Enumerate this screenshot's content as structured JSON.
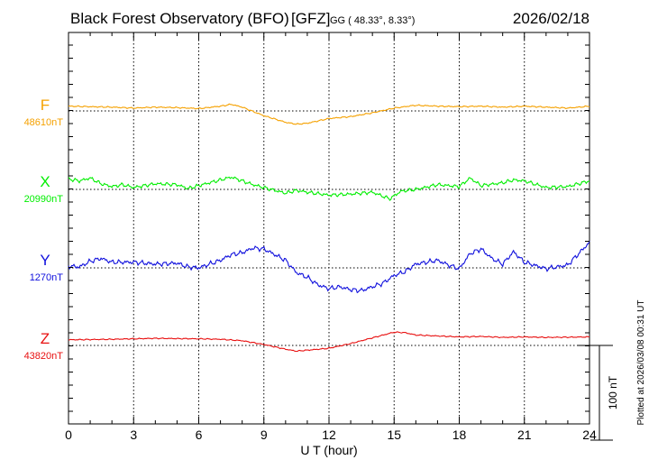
{
  "header": {
    "title": "Black Forest Observatory (BFO)",
    "source": "[GFZ]",
    "coords": "GG ( 48.33°,   8.33°)",
    "date": "2026/02/18"
  },
  "footer": {
    "plotted_note": "Plotted at 2026/03/08 00:31  UT"
  },
  "chart_data": {
    "type": "line",
    "xlabel": "U T (hour)",
    "xlim": [
      0,
      24
    ],
    "x_ticks": [
      0,
      3,
      6,
      9,
      12,
      15,
      18,
      21,
      24
    ],
    "grid": "dotted, vertical every 3 h, horizontal baseline per trace",
    "scale_bar": {
      "label": "100 nT",
      "value_nT": 100
    },
    "series": [
      {
        "name": "F",
        "baseline_label": "48610nT",
        "baseline_nT": 48610,
        "color": "#f5a100",
        "x": [
          0,
          1,
          2,
          3,
          4,
          5,
          6,
          7,
          7.5,
          8,
          9,
          10,
          10.5,
          11,
          12,
          13,
          14,
          15,
          16,
          17,
          18,
          19,
          20,
          21,
          22,
          23,
          24
        ],
        "y": [
          5,
          4.5,
          4,
          3,
          4,
          3.5,
          2.5,
          5,
          7,
          4,
          -5,
          -12,
          -14,
          -13,
          -8,
          -6,
          -2,
          3,
          6,
          5,
          4.5,
          5,
          4,
          5,
          4,
          3,
          5
        ]
      },
      {
        "name": "X",
        "baseline_label": "20990nT",
        "baseline_nT": 20990,
        "color": "#00ee00",
        "x": [
          0,
          0.5,
          1,
          1.5,
          2,
          2.5,
          3,
          4,
          5,
          5.5,
          6,
          7,
          7.5,
          8,
          8.5,
          9,
          10,
          10.5,
          11,
          12,
          13,
          14,
          14.8,
          15.3,
          16,
          17,
          18,
          18.5,
          19,
          20,
          20.5,
          21,
          22,
          23,
          24
        ],
        "y": [
          11,
          9,
          12,
          6,
          3,
          5,
          2,
          6,
          5,
          1,
          4,
          10,
          13,
          9,
          5,
          2,
          -4,
          -1,
          -3,
          -6,
          -5,
          -3,
          -10,
          -2,
          0,
          5,
          3,
          12,
          4,
          7,
          10,
          9,
          2,
          3,
          9
        ]
      },
      {
        "name": "Y",
        "baseline_label": "1270nT",
        "baseline_nT": 1270,
        "color": "#1010dd",
        "x": [
          0,
          0.5,
          1,
          1.5,
          2,
          3,
          4,
          5,
          5.5,
          6,
          7,
          7.5,
          8,
          8.5,
          9,
          9.5,
          10,
          10.5,
          11,
          11.5,
          12,
          12.5,
          13,
          13.5,
          14,
          14.5,
          15,
          15.5,
          16,
          17,
          17.5,
          18,
          18.5,
          19,
          19.5,
          20,
          20.5,
          21,
          22,
          23,
          24
        ],
        "y": [
          2,
          1,
          7,
          10,
          6,
          6,
          4,
          5,
          1,
          0,
          8,
          14,
          16,
          21,
          20,
          14,
          8,
          -5,
          -10,
          -18,
          -22,
          -20,
          -23,
          -24,
          -20,
          -16,
          -8,
          -4,
          4,
          8,
          3,
          -1,
          15,
          20,
          10,
          4,
          17,
          6,
          -1,
          3,
          27
        ]
      },
      {
        "name": "Z",
        "baseline_label": "43820nT",
        "baseline_nT": 43820,
        "color": "#e81010",
        "x": [
          0,
          1,
          2,
          3,
          4,
          5,
          6,
          7,
          8,
          9,
          10,
          10.5,
          11,
          12,
          13,
          14,
          15,
          15.5,
          16,
          17,
          18,
          19,
          20,
          21,
          22,
          23,
          24
        ],
        "y": [
          6,
          6.2,
          6.5,
          7,
          7.5,
          7.2,
          7,
          6.5,
          5,
          1,
          -4,
          -6,
          -5,
          -3,
          2,
          8,
          14,
          13.5,
          11,
          10,
          9,
          9.5,
          8.5,
          9,
          8.5,
          8.7,
          9
        ]
      }
    ]
  }
}
